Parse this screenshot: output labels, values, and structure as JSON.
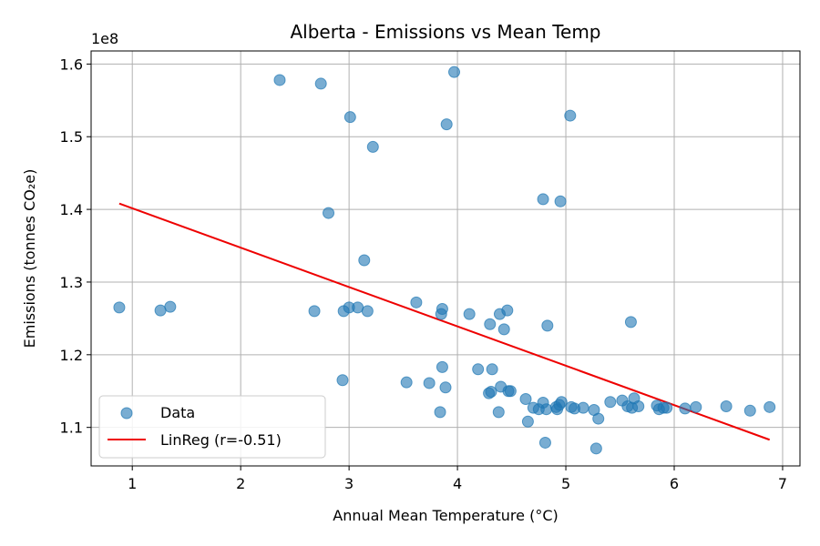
{
  "chart_data": {
    "type": "scatter",
    "title": "Alberta - Emissions vs Mean Temp",
    "xlabel": "Annual Mean Temperature (°C)",
    "ylabel": "Emissions (tonnes CO₂e)",
    "y_offset_label": "1e8",
    "xlim": [
      0.62,
      7.16
    ],
    "ylim": [
      1.047,
      1.618
    ],
    "xticks": [
      1,
      2,
      3,
      4,
      5,
      6,
      7
    ],
    "yticks": [
      1.1,
      1.2,
      1.3,
      1.4,
      1.5,
      1.6
    ],
    "grid": true,
    "legend_position": "lower-left",
    "series": [
      {
        "name": "Data",
        "kind": "scatter",
        "color": "#1f77b4",
        "points": [
          [
            0.88,
            1.265
          ],
          [
            1.26,
            1.261
          ],
          [
            1.35,
            1.266
          ],
          [
            2.36,
            1.578
          ],
          [
            2.68,
            1.26
          ],
          [
            2.74,
            1.573
          ],
          [
            2.81,
            1.395
          ],
          [
            2.94,
            1.165
          ],
          [
            2.95,
            1.26
          ],
          [
            3.0,
            1.265
          ],
          [
            3.01,
            1.527
          ],
          [
            3.08,
            1.265
          ],
          [
            3.14,
            1.33
          ],
          [
            3.17,
            1.26
          ],
          [
            3.22,
            1.486
          ],
          [
            3.53,
            1.162
          ],
          [
            3.62,
            1.272
          ],
          [
            3.74,
            1.161
          ],
          [
            3.84,
            1.121
          ],
          [
            3.85,
            1.256
          ],
          [
            3.86,
            1.263
          ],
          [
            3.86,
            1.183
          ],
          [
            3.89,
            1.155
          ],
          [
            3.9,
            1.517
          ],
          [
            3.97,
            1.589
          ],
          [
            4.11,
            1.256
          ],
          [
            4.19,
            1.18
          ],
          [
            4.29,
            1.147
          ],
          [
            4.3,
            1.242
          ],
          [
            4.31,
            1.149
          ],
          [
            4.32,
            1.18
          ],
          [
            4.38,
            1.121
          ],
          [
            4.39,
            1.256
          ],
          [
            4.4,
            1.156
          ],
          [
            4.43,
            1.235
          ],
          [
            4.46,
            1.261
          ],
          [
            4.47,
            1.15
          ],
          [
            4.49,
            1.15
          ],
          [
            4.63,
            1.139
          ],
          [
            4.65,
            1.108
          ],
          [
            4.7,
            1.127
          ],
          [
            4.75,
            1.125
          ],
          [
            4.79,
            1.414
          ],
          [
            4.79,
            1.134
          ],
          [
            4.81,
            1.079
          ],
          [
            4.82,
            1.125
          ],
          [
            4.83,
            1.24
          ],
          [
            4.91,
            1.128
          ],
          [
            4.92,
            1.125
          ],
          [
            4.94,
            1.131
          ],
          [
            4.95,
            1.411
          ],
          [
            4.96,
            1.135
          ],
          [
            5.04,
            1.529
          ],
          [
            5.05,
            1.128
          ],
          [
            5.08,
            1.126
          ],
          [
            5.16,
            1.127
          ],
          [
            5.26,
            1.124
          ],
          [
            5.28,
            1.071
          ],
          [
            5.3,
            1.112
          ],
          [
            5.41,
            1.135
          ],
          [
            5.52,
            1.137
          ],
          [
            5.57,
            1.129
          ],
          [
            5.6,
            1.245
          ],
          [
            5.61,
            1.127
          ],
          [
            5.63,
            1.14
          ],
          [
            5.67,
            1.129
          ],
          [
            5.84,
            1.13
          ],
          [
            5.86,
            1.125
          ],
          [
            5.9,
            1.127
          ],
          [
            5.93,
            1.127
          ],
          [
            6.1,
            1.126
          ],
          [
            6.2,
            1.128
          ],
          [
            6.48,
            1.129
          ],
          [
            6.7,
            1.123
          ],
          [
            6.88,
            1.128
          ]
        ]
      },
      {
        "name": "LinReg (r=-0.51)",
        "kind": "line",
        "color": "#ee0000",
        "points": [
          [
            0.88,
            1.408
          ],
          [
            6.88,
            1.083
          ]
        ]
      }
    ]
  }
}
